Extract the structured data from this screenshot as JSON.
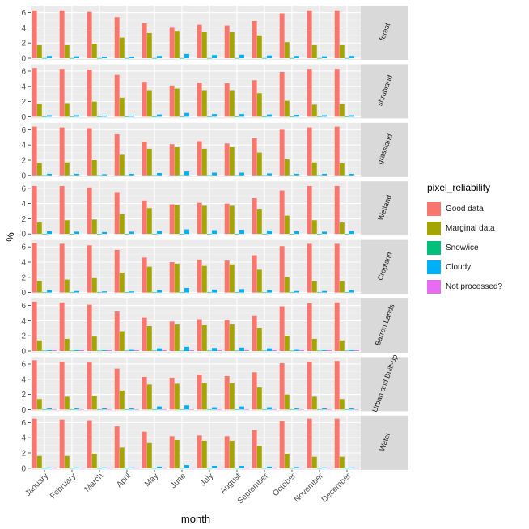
{
  "chart_data": {
    "type": "bar",
    "title": "",
    "xlabel": "month",
    "ylabel": "%",
    "ylim": [
      0,
      6.7
    ],
    "y_ticks": [
      0,
      2,
      4,
      6
    ],
    "grid": true,
    "legend_position": "right",
    "legend_title": "pixel_reliability",
    "categories": [
      "January",
      "February",
      "March",
      "April",
      "May",
      "June",
      "July",
      "August",
      "September",
      "October",
      "November",
      "December"
    ],
    "series": [
      {
        "name": "Good data",
        "color": "#F8766D"
      },
      {
        "name": "Marginal data",
        "color": "#A3A500"
      },
      {
        "name": "Snow/ice",
        "color": "#00BF7D"
      },
      {
        "name": "Cloudy",
        "color": "#00B0F6"
      },
      {
        "name": "Not processed?",
        "color": "#E76BF3"
      }
    ],
    "facets": [
      {
        "label": "forest",
        "values": {
          "Good data": [
            6.3,
            6.3,
            6.1,
            5.4,
            4.6,
            4.1,
            4.4,
            4.3,
            4.9,
            5.9,
            6.3,
            6.3
          ],
          "Marginal data": [
            1.7,
            1.7,
            1.9,
            2.7,
            3.3,
            3.6,
            3.4,
            3.4,
            3.0,
            2.1,
            1.7,
            1.7
          ],
          "Snow/ice": [
            0.02,
            0.02,
            0.02,
            0.02,
            0.02,
            0.02,
            0.02,
            0.02,
            0.02,
            0.02,
            0.02,
            0.02
          ],
          "Cloudy": [
            0.3,
            0.25,
            0.2,
            0.2,
            0.3,
            0.55,
            0.4,
            0.45,
            0.35,
            0.3,
            0.25,
            0.3
          ],
          "Not processed?": [
            0,
            0,
            0,
            0,
            0,
            0,
            0,
            0,
            0,
            0,
            0,
            0
          ]
        }
      },
      {
        "label": "shrubland",
        "values": {
          "Good data": [
            6.4,
            6.3,
            6.2,
            5.5,
            4.6,
            4.1,
            4.5,
            4.4,
            4.8,
            5.9,
            6.3,
            6.3
          ],
          "Marginal data": [
            1.7,
            1.8,
            2.0,
            2.5,
            3.5,
            3.7,
            3.5,
            3.5,
            3.1,
            2.1,
            1.6,
            1.7
          ],
          "Snow/ice": [
            0.02,
            0.02,
            0.02,
            0.02,
            0.02,
            0.02,
            0.02,
            0.02,
            0.02,
            0.02,
            0.02,
            0.02
          ],
          "Cloudy": [
            0.2,
            0.2,
            0.15,
            0.15,
            0.3,
            0.5,
            0.35,
            0.35,
            0.3,
            0.25,
            0.2,
            0.2
          ],
          "Not processed?": [
            0,
            0,
            0,
            0,
            0,
            0,
            0,
            0,
            0,
            0,
            0,
            0
          ]
        }
      },
      {
        "label": "grassland",
        "values": {
          "Good data": [
            6.4,
            6.3,
            6.2,
            5.4,
            4.4,
            4.1,
            4.5,
            4.2,
            4.9,
            6.0,
            6.3,
            6.4
          ],
          "Marginal data": [
            1.6,
            1.7,
            2.0,
            2.7,
            3.5,
            3.7,
            3.5,
            3.7,
            3.0,
            2.1,
            1.7,
            1.6
          ],
          "Snow/ice": [
            0.02,
            0.02,
            0.02,
            0.02,
            0.02,
            0.02,
            0.02,
            0.02,
            0.02,
            0.02,
            0.02,
            0.02
          ],
          "Cloudy": [
            0.2,
            0.2,
            0.15,
            0.2,
            0.3,
            0.5,
            0.35,
            0.35,
            0.25,
            0.2,
            0.2,
            0.2
          ],
          "Not processed?": [
            0,
            0,
            0,
            0,
            0,
            0,
            0,
            0,
            0,
            0,
            0,
            0
          ]
        }
      },
      {
        "label": "Wetland",
        "values": {
          "Good data": [
            6.3,
            6.3,
            6.1,
            5.5,
            4.4,
            3.9,
            4.1,
            4.0,
            4.7,
            5.7,
            6.3,
            6.3
          ],
          "Marginal data": [
            1.5,
            1.8,
            1.9,
            2.6,
            3.4,
            3.8,
            3.7,
            3.7,
            3.2,
            2.4,
            1.8,
            1.5
          ],
          "Snow/ice": [
            0.02,
            0.02,
            0.02,
            0.02,
            0.02,
            0.02,
            0.02,
            0.02,
            0.02,
            0.02,
            0.02,
            0.02
          ],
          "Cloudy": [
            0.35,
            0.3,
            0.25,
            0.3,
            0.4,
            0.6,
            0.5,
            0.55,
            0.45,
            0.35,
            0.3,
            0.4
          ],
          "Not processed?": [
            0,
            0,
            0,
            0,
            0,
            0,
            0,
            0,
            0,
            0,
            0,
            0
          ]
        }
      },
      {
        "label": "Cropland",
        "values": {
          "Good data": [
            6.5,
            6.4,
            6.2,
            5.6,
            4.6,
            4.0,
            4.3,
            4.2,
            4.9,
            6.1,
            6.4,
            6.4
          ],
          "Marginal data": [
            1.5,
            1.7,
            1.9,
            2.6,
            3.4,
            3.8,
            3.5,
            3.7,
            3.0,
            2.0,
            1.5,
            1.5
          ],
          "Snow/ice": [
            0.02,
            0.02,
            0.02,
            0.02,
            0.02,
            0.02,
            0.02,
            0.02,
            0.02,
            0.02,
            0.02,
            0.02
          ],
          "Cloudy": [
            0.3,
            0.2,
            0.15,
            0.15,
            0.3,
            0.6,
            0.4,
            0.45,
            0.3,
            0.2,
            0.2,
            0.3
          ],
          "Not processed?": [
            0,
            0,
            0,
            0,
            0,
            0,
            0,
            0,
            0,
            0,
            0,
            0
          ]
        }
      },
      {
        "label": "Barren Lands",
        "values": {
          "Good data": [
            6.5,
            6.4,
            6.1,
            5.2,
            4.4,
            3.9,
            4.2,
            4.1,
            4.6,
            5.9,
            6.3,
            6.4
          ],
          "Marginal data": [
            1.4,
            1.6,
            1.9,
            2.6,
            3.3,
            3.5,
            3.4,
            3.5,
            3.0,
            2.0,
            1.6,
            1.4
          ],
          "Snow/ice": [
            0.05,
            0.05,
            0.05,
            0.05,
            0.05,
            0.05,
            0.05,
            0.05,
            0.05,
            0.05,
            0.05,
            0.05
          ],
          "Cloudy": [
            0.1,
            0.1,
            0.1,
            0.15,
            0.35,
            0.55,
            0.4,
            0.45,
            0.35,
            0.15,
            0.1,
            0.1
          ],
          "Not processed?": [
            0.1,
            0.1,
            0.1,
            0.1,
            0.1,
            0.1,
            0.1,
            0.1,
            0.1,
            0.1,
            0.1,
            0.1
          ]
        }
      },
      {
        "label": "Urban and Built-up",
        "values": {
          "Good data": [
            6.5,
            6.3,
            6.2,
            5.4,
            4.3,
            4.2,
            4.6,
            4.4,
            4.9,
            6.1,
            6.3,
            6.4
          ],
          "Marginal data": [
            1.4,
            1.7,
            1.8,
            2.5,
            3.3,
            3.4,
            3.5,
            3.5,
            2.9,
            2.0,
            1.7,
            1.4
          ],
          "Snow/ice": [
            0.05,
            0.05,
            0.05,
            0.05,
            0.05,
            0.05,
            0.05,
            0.05,
            0.05,
            0.05,
            0.05,
            0.05
          ],
          "Cloudy": [
            0.15,
            0.15,
            0.15,
            0.15,
            0.4,
            0.55,
            0.3,
            0.4,
            0.3,
            0.15,
            0.15,
            0.15
          ],
          "Not processed?": [
            0.05,
            0.05,
            0.05,
            0.05,
            0.05,
            0.05,
            0.05,
            0.05,
            0.05,
            0.05,
            0.05,
            0.05
          ]
        }
      },
      {
        "label": "Water",
        "values": {
          "Good data": [
            6.5,
            6.4,
            6.3,
            5.5,
            4.8,
            4.2,
            4.3,
            4.2,
            5.0,
            6.2,
            6.5,
            6.5
          ],
          "Marginal data": [
            1.6,
            1.6,
            1.9,
            2.7,
            3.3,
            3.7,
            3.6,
            3.6,
            2.9,
            1.9,
            1.5,
            1.5
          ],
          "Snow/ice": [
            0.02,
            0.02,
            0.02,
            0.02,
            0.02,
            0.02,
            0.02,
            0.02,
            0.02,
            0.02,
            0.02,
            0.02
          ],
          "Cloudy": [
            0.1,
            0.1,
            0.1,
            0.1,
            0.2,
            0.4,
            0.3,
            0.3,
            0.2,
            0.15,
            0.1,
            0.1
          ],
          "Not processed?": [
            0.03,
            0.03,
            0.03,
            0.03,
            0.03,
            0.03,
            0.03,
            0.03,
            0.03,
            0.03,
            0.03,
            0.03
          ]
        }
      }
    ]
  }
}
